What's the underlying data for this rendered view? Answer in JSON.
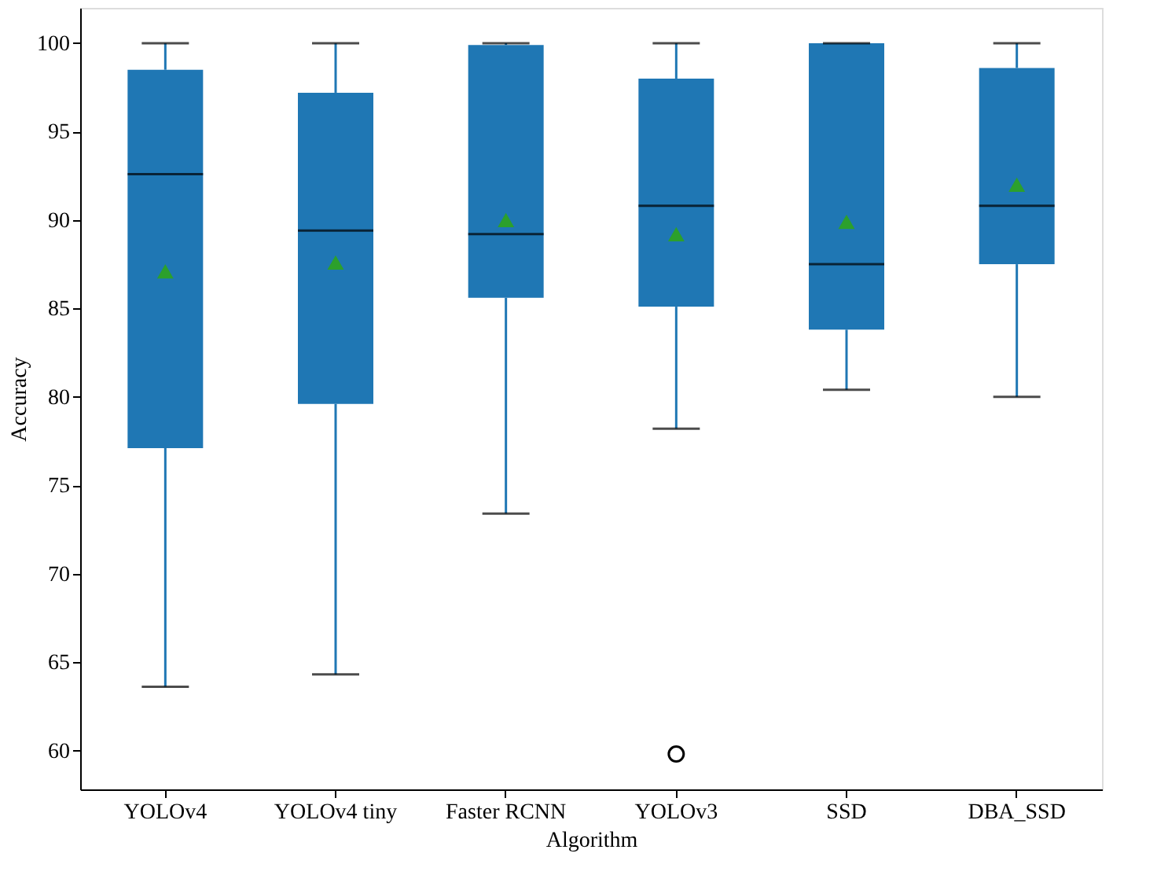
{
  "chart_data": {
    "type": "box",
    "xlabel": "Algorithm",
    "ylabel": "Accuracy",
    "categories": [
      "YOLOv4",
      "YOLOv4 tiny",
      "Faster RCNN",
      "YOLOv3",
      "SSD",
      "DBA_SSD"
    ],
    "color": "#1f77b4",
    "boxes": [
      {
        "low": 63.6,
        "q1": 77.1,
        "median": 92.6,
        "q3": 98.5,
        "high": 100,
        "mean": 87.1
      },
      {
        "low": 64.3,
        "q1": 79.6,
        "median": 89.4,
        "q3": 97.2,
        "high": 100,
        "mean": 87.6
      },
      {
        "low": 73.4,
        "q1": 85.6,
        "median": 89.2,
        "q3": 99.9,
        "high": 100,
        "mean": 90.0
      },
      {
        "low": 78.2,
        "q1": 85.1,
        "median": 90.8,
        "q3": 98.0,
        "high": 100,
        "mean": 89.2,
        "outliers": [
          59.8
        ]
      },
      {
        "low": 80.4,
        "q1": 83.8,
        "median": 87.5,
        "q3": 100,
        "high": 100,
        "mean": 89.9
      },
      {
        "low": 80.0,
        "q1": 87.5,
        "median": 90.8,
        "q3": 98.6,
        "high": 100,
        "mean": 92.0
      }
    ],
    "ylim": [
      57.8,
      102
    ],
    "yticks": [
      60,
      65,
      70,
      75,
      80,
      85,
      90,
      95,
      100
    ],
    "grid": false
  }
}
